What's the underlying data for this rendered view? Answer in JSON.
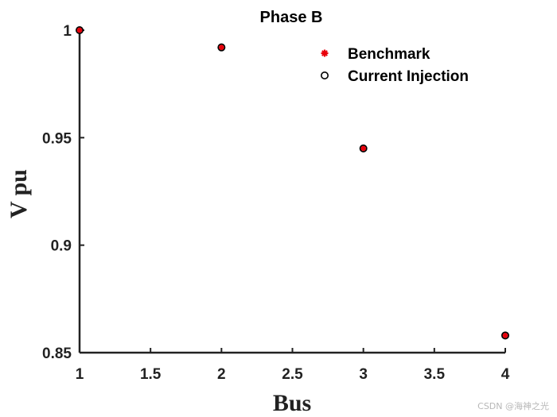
{
  "chart_data": {
    "type": "scatter",
    "title": "Phase B",
    "xlabel": "Bus",
    "ylabel": "V pu",
    "xlim": [
      1,
      4
    ],
    "ylim": [
      0.85,
      1.0
    ],
    "xticks": [
      "1",
      "1.5",
      "2",
      "2.5",
      "3",
      "3.5",
      "4"
    ],
    "yticks": [
      "1",
      "0.95",
      "0.9",
      "0.85"
    ],
    "grid": false,
    "legend_position": "top-right",
    "series": [
      {
        "name": "Benchmark",
        "marker": "asterisk",
        "color": "#e8000b",
        "x": [
          1,
          2,
          3,
          4
        ],
        "y": [
          1.0,
          0.992,
          0.945,
          0.858
        ]
      },
      {
        "name": "Current Injection",
        "marker": "circle-open",
        "color": "#000000",
        "x": [
          1,
          2,
          3,
          4
        ],
        "y": [
          1.0,
          0.992,
          0.945,
          0.858
        ]
      }
    ]
  },
  "watermark": "CSDN @海神之光"
}
